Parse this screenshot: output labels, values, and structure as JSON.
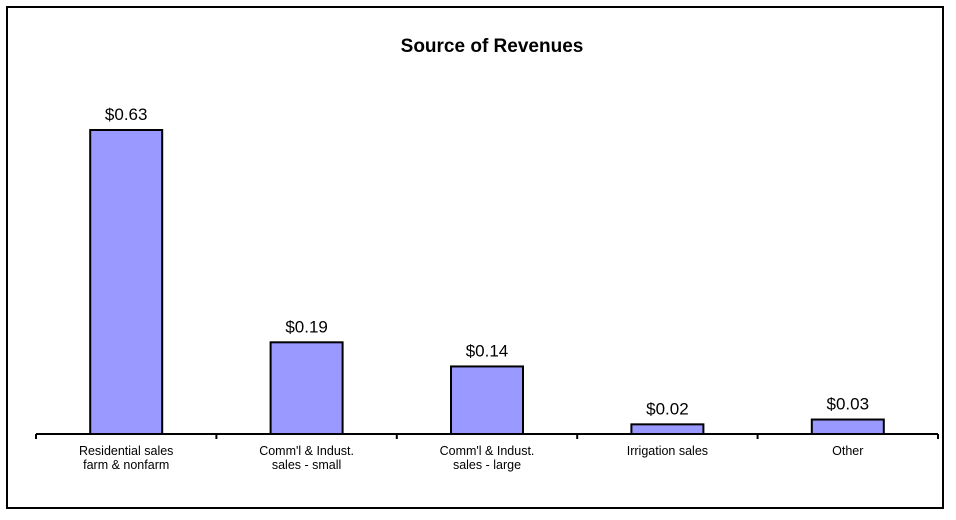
{
  "chart_data": {
    "type": "bar",
    "title": "Source of Revenues",
    "xlabel": "",
    "ylabel": "",
    "categories": [
      [
        "Residential sales",
        "farm & nonfarm"
      ],
      [
        "Comm'l & Indust.",
        "sales - small"
      ],
      [
        "Comm'l & Indust.",
        "sales - large"
      ],
      [
        "Irrigation sales"
      ],
      [
        "Other"
      ]
    ],
    "values": [
      0.63,
      0.19,
      0.14,
      0.02,
      0.03
    ],
    "value_labels": [
      "$0.63",
      "$0.19",
      "$0.14",
      "$0.02",
      "$0.03"
    ],
    "ylim": [
      0,
      0.63
    ],
    "grid": false,
    "legend": "none",
    "colors": {
      "bar_fill": "#9999ff",
      "bar_stroke": "#000000",
      "axis": "#000000"
    }
  }
}
